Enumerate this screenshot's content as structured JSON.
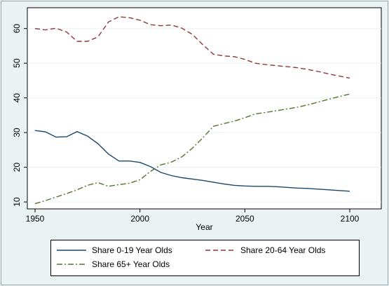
{
  "chart_data": {
    "type": "line",
    "title": "",
    "xlabel": "Year",
    "ylabel": "",
    "xlim": [
      1950,
      2100
    ],
    "ylim": [
      8,
      66
    ],
    "xticks": [
      1950,
      2000,
      2050,
      2100
    ],
    "yticks": [
      10,
      20,
      30,
      40,
      50,
      60
    ],
    "grid": "horizontal",
    "legend_position": "bottom",
    "series": [
      {
        "name": "Share 0-19 Year Olds",
        "color": "#1a476f",
        "dash": "solid",
        "x": [
          1950,
          1955,
          1960,
          1965,
          1970,
          1975,
          1980,
          1985,
          1990,
          1995,
          2000,
          2005,
          2010,
          2015,
          2020,
          2025,
          2030,
          2035,
          2040,
          2045,
          2050,
          2055,
          2060,
          2065,
          2070,
          2075,
          2080,
          2085,
          2090,
          2095,
          2100
        ],
        "y": [
          30.6,
          30.2,
          28.7,
          28.8,
          30.3,
          29.0,
          26.8,
          23.8,
          21.8,
          21.8,
          21.4,
          20.2,
          18.5,
          17.6,
          17.0,
          16.6,
          16.2,
          15.7,
          15.2,
          14.8,
          14.6,
          14.5,
          14.5,
          14.4,
          14.2,
          14.0,
          13.9,
          13.7,
          13.5,
          13.3,
          13.1
        ]
      },
      {
        "name": "Share 20-64 Year Olds",
        "color": "#90353b",
        "dash": "dashed",
        "x": [
          1950,
          1955,
          1960,
          1965,
          1970,
          1975,
          1980,
          1985,
          1990,
          1995,
          2000,
          2005,
          2010,
          2015,
          2020,
          2025,
          2030,
          2035,
          2040,
          2045,
          2050,
          2055,
          2060,
          2065,
          2070,
          2075,
          2080,
          2085,
          2090,
          2095,
          2100
        ],
        "y": [
          60.0,
          59.6,
          60.1,
          59.0,
          56.3,
          56.3,
          57.6,
          61.9,
          63.4,
          63.1,
          62.4,
          61.1,
          60.8,
          61.0,
          60.1,
          58.3,
          55.3,
          52.6,
          52.1,
          51.9,
          51.1,
          50.0,
          49.6,
          49.3,
          49.0,
          48.7,
          48.2,
          47.6,
          46.9,
          46.3,
          45.7
        ]
      },
      {
        "name": "Share 65+ Year Olds",
        "color": "#55752f",
        "dash": "dashdot",
        "x": [
          1950,
          1955,
          1960,
          1965,
          1970,
          1975,
          1980,
          1985,
          1990,
          1995,
          2000,
          2005,
          2010,
          2015,
          2020,
          2025,
          2030,
          2035,
          2040,
          2045,
          2050,
          2055,
          2060,
          2065,
          2070,
          2075,
          2080,
          2085,
          2090,
          2095,
          2100
        ],
        "y": [
          9.5,
          10.4,
          11.4,
          12.4,
          13.5,
          14.8,
          15.6,
          14.5,
          15.0,
          15.4,
          16.4,
          18.8,
          20.7,
          21.5,
          23.0,
          25.5,
          28.5,
          31.8,
          32.6,
          33.3,
          34.3,
          35.4,
          35.8,
          36.3,
          36.8,
          37.3,
          38.0,
          38.8,
          39.6,
          40.4,
          41.1
        ]
      }
    ]
  }
}
